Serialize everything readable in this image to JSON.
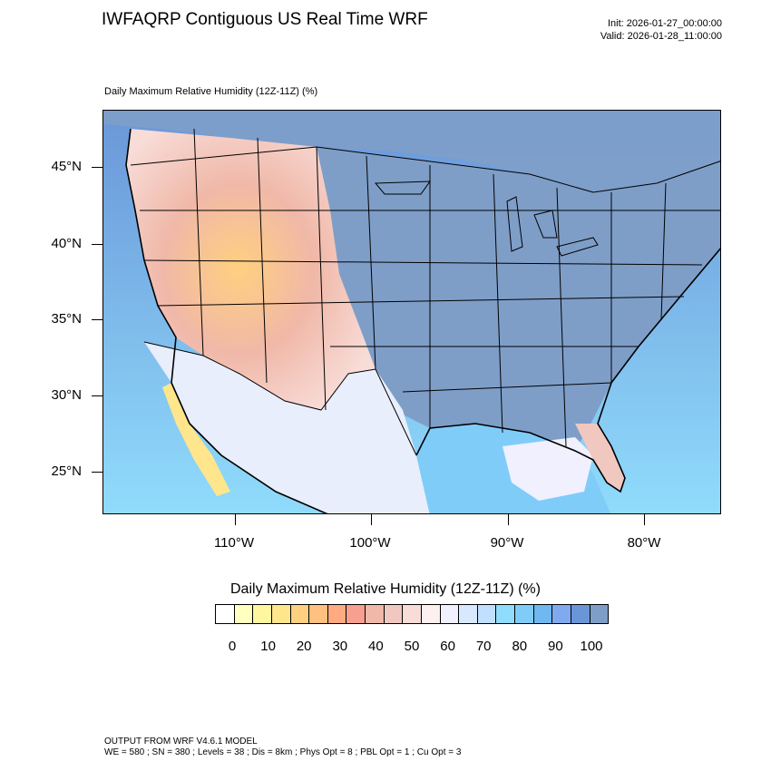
{
  "title": "IWFAQRP Contiguous US Real Time WRF",
  "init_line": "Init: 2026-01-27_00:00:00",
  "valid_line": "Valid: 2026-01-28_11:00:00",
  "subtitle": "Daily Maximum Relative Humidity (12Z-11Z)   (%)",
  "lat_labels": [
    "45°N",
    "40°N",
    "35°N",
    "30°N",
    "25°N"
  ],
  "lon_labels": [
    "110°W",
    "100°W",
    "90°W",
    "80°W"
  ],
  "colorbar": {
    "title": "Daily Maximum Relative Humidity (12Z-11Z)  (%)",
    "colors": [
      "#ffffff",
      "#ffffc0",
      "#fff7a0",
      "#ffe68c",
      "#ffd080",
      "#ffc080",
      "#ffaa80",
      "#f8a090",
      "#f0b8a8",
      "#f0c8c0",
      "#f8dcd8",
      "#fff0f0",
      "#f0f0ff",
      "#d8e8ff",
      "#c0e0ff",
      "#90dcfc",
      "#80ccf8",
      "#70b8f0",
      "#80aaf0",
      "#6a96d8",
      "#7e9ec8"
    ],
    "labels": [
      "0",
      "10",
      "20",
      "30",
      "40",
      "50",
      "60",
      "70",
      "80",
      "90",
      "100"
    ]
  },
  "footer": {
    "line1": "OUTPUT FROM WRF V4.6.1 MODEL",
    "line2": "WE = 580 ; SN = 380 ; Levels = 38 ; Dis = 8km ; Phys Opt = 8 ; PBL Opt = 1 ; Cu Opt = 3"
  }
}
